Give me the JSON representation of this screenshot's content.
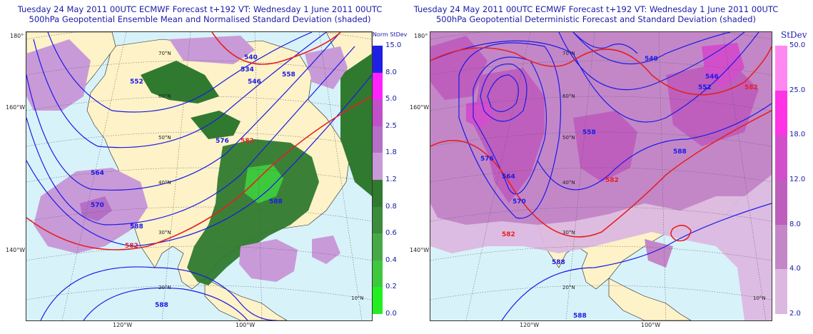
{
  "left_panel": {
    "title_line1": "Tuesday 24 May 2011 00UTC ECMWF Forecast t+192  VT: Wednesday 1 June 2011 00UTC",
    "title_line2": "500hPa Geopotential Ensemble Mean and Normalised Standard Deviation (shaded)",
    "legend": {
      "title": "Norm StDev",
      "ticks": [
        "15.0",
        "8.0",
        "5.0",
        "2.5",
        "1.8",
        "1.2",
        "0.8",
        "0.6",
        "0.4",
        "0.2",
        "0.0"
      ],
      "colors": [
        "#1f1fe6",
        "#ff22ff",
        "#c050c8",
        "#b370c6",
        "#c99ad8",
        "#ffffff",
        "#2f7a2f",
        "#3a8c3a",
        "#46a946",
        "#3ec83e",
        "#22ee22"
      ]
    },
    "contour_labels": [
      "534",
      "540",
      "546",
      "552",
      "558",
      "564",
      "570",
      "576",
      "582",
      "588"
    ]
  },
  "right_panel": {
    "title_line1": "Tuesday 24 May 2011 00UTC ECMWF Forecast t+192  VT: Wednesday 1 June 2011 00UTC",
    "title_line2": "500hPa Geopotential Deterministic Forecast and Standard Deviation (shaded)",
    "legend": {
      "title": "StDev",
      "ticks": [
        "50.0",
        "25.0",
        "18.0",
        "12.0",
        "8.0",
        "4.0",
        "2.0"
      ],
      "colors": [
        "#ff88f0",
        "#ff33e6",
        "#d24fcb",
        "#be5fbe",
        "#c387c8",
        "#dcb8e0"
      ]
    },
    "contour_labels": [
      "540",
      "546",
      "552",
      "558",
      "564",
      "570",
      "576",
      "582",
      "588"
    ]
  },
  "map_labels": {
    "lat": [
      "70°N",
      "60°N",
      "50°N",
      "40°N",
      "30°N",
      "20°N",
      "10°N"
    ],
    "lon_side": [
      "180°",
      "160°W",
      "140°W"
    ],
    "lon_bottom": [
      "120°W",
      "100°W"
    ]
  }
}
